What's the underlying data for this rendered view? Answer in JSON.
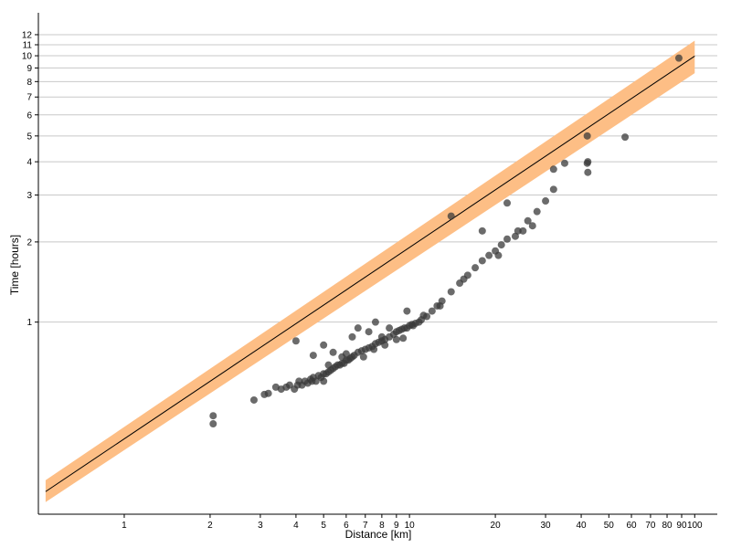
{
  "chart_data": {
    "type": "scatter",
    "title": "",
    "xlabel": "Distance [km]",
    "ylabel": "Time [hours]",
    "xscale": "log",
    "yscale": "log",
    "xlim": [
      0.5,
      120
    ],
    "ylim": [
      0.19,
      14.5
    ],
    "grid": "horizontal",
    "colors": {
      "band": "#fdbe85",
      "line": "#000000",
      "points": "#3a3a3a",
      "grid": "#c8c8c8"
    },
    "x_ticks": [
      {
        "value": 1,
        "label": "1"
      },
      {
        "value": 2,
        "label": "2"
      },
      {
        "value": 3,
        "label": "3"
      },
      {
        "value": 4,
        "label": "4"
      },
      {
        "value": 5,
        "label": "5"
      },
      {
        "value": 6,
        "label": "6"
      },
      {
        "value": 7,
        "label": "7"
      },
      {
        "value": 8,
        "label": "8"
      },
      {
        "value": 9,
        "label": "9"
      },
      {
        "value": 10,
        "label": "10"
      },
      {
        "value": 20,
        "label": "20"
      },
      {
        "value": 30,
        "label": "30"
      },
      {
        "value": 40,
        "label": "40"
      },
      {
        "value": 50,
        "label": "50"
      },
      {
        "value": 60,
        "label": "60"
      },
      {
        "value": 70,
        "label": "70"
      },
      {
        "value": 80,
        "label": "80"
      },
      {
        "value": 90,
        "label": "90"
      },
      {
        "value": 100,
        "label": "100"
      }
    ],
    "y_ticks": [
      {
        "value": 1,
        "label": "1"
      },
      {
        "value": 2,
        "label": "2"
      },
      {
        "value": 3,
        "label": "3"
      },
      {
        "value": 4,
        "label": "4"
      },
      {
        "value": 5,
        "label": "5"
      },
      {
        "value": 6,
        "label": "6"
      },
      {
        "value": 7,
        "label": "7"
      },
      {
        "value": 8,
        "label": "8"
      },
      {
        "value": 9,
        "label": "9"
      },
      {
        "value": 10,
        "label": "10"
      },
      {
        "value": 11,
        "label": "11"
      },
      {
        "value": 12,
        "label": "12"
      }
    ],
    "fit_line": {
      "x": [
        0.53,
        100
      ],
      "y": [
        0.231,
        9.97
      ]
    },
    "band": {
      "x": [
        0.53,
        100
      ],
      "upper": [
        0.255,
        11.4
      ],
      "lower": [
        0.211,
        8.6
      ]
    },
    "points": {
      "x": [
        2.05,
        2.05,
        2.85,
        3.1,
        3.2,
        3.4,
        3.55,
        3.7,
        3.8,
        3.95,
        4.05,
        4.1,
        4.2,
        4.3,
        4.4,
        4.5,
        4.55,
        4.6,
        4.7,
        4.8,
        4.9,
        5.0,
        5.0,
        5.1,
        5.2,
        5.3,
        5.4,
        5.5,
        5.6,
        5.7,
        5.8,
        5.9,
        6.0,
        6.1,
        6.2,
        6.3,
        6.4,
        6.6,
        6.8,
        7.0,
        7.2,
        7.4,
        7.6,
        7.8,
        8.0,
        8.2,
        8.5,
        8.8,
        9.0,
        9.2,
        9.4,
        9.6,
        9.8,
        10.0,
        10.2,
        10.5,
        10.8,
        11.0,
        11.5,
        12.0,
        12.5,
        13.0,
        14.0,
        15.0,
        16.0,
        17.0,
        18.0,
        19.0,
        20.0,
        21.0,
        22.0,
        24.0,
        26.0,
        28.0,
        30.0,
        32.0,
        42.0,
        42.2,
        42.2,
        57.0,
        88.0,
        4.0,
        4.6,
        5.0,
        5.4,
        6.3,
        6.6,
        7.2,
        7.6,
        8.0,
        8.5,
        9.8,
        14.0,
        18.0,
        22.0,
        25.0,
        32.0,
        35.0,
        42.0,
        5.2,
        5.8,
        6.0,
        6.9,
        7.5,
        8.2,
        9.0,
        9.5,
        10.3,
        11.2,
        12.8,
        15.5,
        20.5,
        23.5,
        27.0
      ],
      "y": [
        0.445,
        0.415,
        0.51,
        0.535,
        0.54,
        0.57,
        0.56,
        0.57,
        0.58,
        0.56,
        0.58,
        0.6,
        0.58,
        0.6,
        0.59,
        0.61,
        0.6,
        0.62,
        0.6,
        0.63,
        0.62,
        0.6,
        0.64,
        0.64,
        0.65,
        0.66,
        0.67,
        0.68,
        0.69,
        0.69,
        0.7,
        0.7,
        0.72,
        0.72,
        0.73,
        0.74,
        0.75,
        0.77,
        0.78,
        0.79,
        0.8,
        0.81,
        0.83,
        0.84,
        0.85,
        0.86,
        0.88,
        0.9,
        0.92,
        0.93,
        0.94,
        0.95,
        0.95,
        0.97,
        0.98,
        0.99,
        1.0,
        1.02,
        1.05,
        1.1,
        1.15,
        1.2,
        1.3,
        1.4,
        1.5,
        1.6,
        1.7,
        1.78,
        1.85,
        1.95,
        2.05,
        2.2,
        2.4,
        2.6,
        2.85,
        3.15,
        3.95,
        3.65,
        4.0,
        4.95,
        9.8,
        0.85,
        0.75,
        0.82,
        0.77,
        0.88,
        0.95,
        0.92,
        1.0,
        0.88,
        0.95,
        1.1,
        2.5,
        2.2,
        2.8,
        2.2,
        3.75,
        3.95,
        5.0,
        0.69,
        0.74,
        0.76,
        0.74,
        0.79,
        0.82,
        0.86,
        0.87,
        0.97,
        1.06,
        1.15,
        1.45,
        1.78,
        2.1,
        2.3
      ]
    }
  }
}
